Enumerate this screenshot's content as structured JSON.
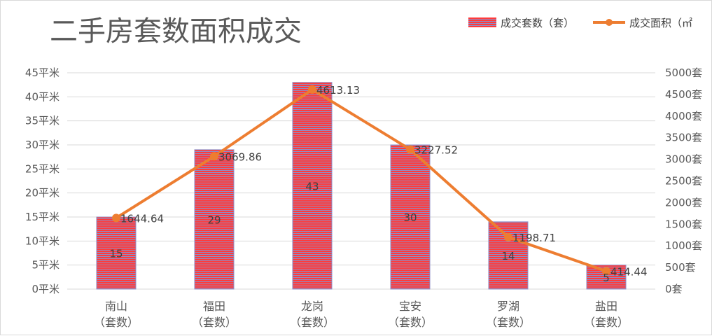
{
  "chart_data": {
    "type": "bar",
    "title": "二手房套数面积成交",
    "categories": [
      "南山",
      "福田",
      "龙岗",
      "宝安",
      "罗湖",
      "盐田"
    ],
    "category_sublabel": "（套数）",
    "series": [
      {
        "name": "成交套数（套）",
        "type": "bar",
        "axis": "left",
        "values": [
          15,
          29,
          43,
          30,
          14,
          5
        ],
        "data_labels": [
          "15",
          "29",
          "43",
          "30",
          "14",
          "5"
        ],
        "color": "#ff3b3b",
        "stripe_color": "#8c8fc9"
      },
      {
        "name": "成交面积（㎡",
        "type": "line",
        "axis": "right",
        "values": [
          1644.64,
          3069.86,
          4613.13,
          3227.52,
          1198.71,
          414.44
        ],
        "data_labels": [
          "1644.64",
          "3069.86",
          "4613.13",
          "3227.52",
          "1198.71",
          "414.44"
        ],
        "color": "#ed7d31"
      }
    ],
    "y_left": {
      "min": 0,
      "max": 45,
      "step": 5,
      "tick_labels": [
        "0平米",
        "5平米",
        "10平米",
        "15平米",
        "20平米",
        "25平米",
        "30平米",
        "35平米",
        "40平米",
        "45平米"
      ]
    },
    "y_right": {
      "min": 0,
      "max": 5000,
      "step": 500,
      "tick_labels": [
        "0套",
        "500套",
        "1000套",
        "1500套",
        "2000套",
        "2500套",
        "3000套",
        "3500套",
        "4000套",
        "4500套",
        "5000套"
      ]
    },
    "grid": true,
    "legend_position": "top-right",
    "colors": {
      "gridline": "#d9d9d9",
      "text": "#595959",
      "title": "#595959"
    }
  }
}
